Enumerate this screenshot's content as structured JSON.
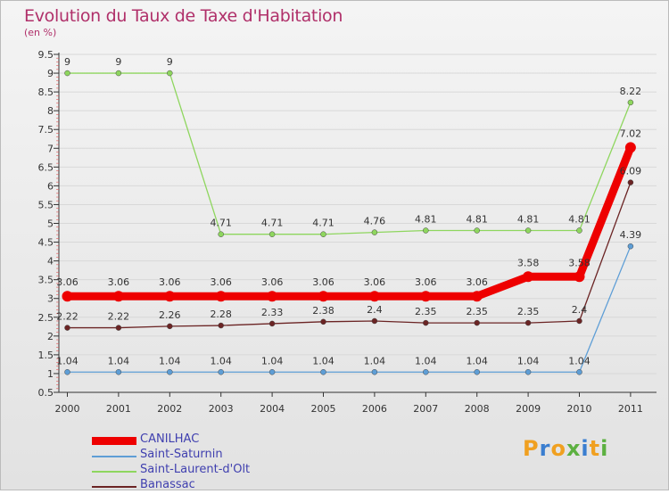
{
  "chart_data": {
    "type": "line",
    "title": "Evolution du Taux de Taxe d'Habitation",
    "ylabel": "(en %)",
    "xlabel": "",
    "ylim": [
      0.5,
      9.5
    ],
    "yticks": [
      "0.5",
      "1",
      "1.5",
      "2",
      "2.5",
      "3",
      "3.5",
      "4",
      "4.5",
      "5",
      "5.5",
      "6",
      "6.5",
      "7",
      "7.5",
      "8",
      "8.5",
      "9",
      "9.5"
    ],
    "categories": [
      "2000",
      "2001",
      "2002",
      "2003",
      "2004",
      "2005",
      "2006",
      "2007",
      "2008",
      "2009",
      "2010",
      "2011"
    ],
    "series": [
      {
        "name": "CANILHAC",
        "color": "#ee0000",
        "values": [
          3.06,
          3.06,
          3.06,
          3.06,
          3.06,
          3.06,
          3.06,
          3.06,
          3.06,
          3.58,
          3.58,
          7.02
        ],
        "labels": [
          "3.06",
          "3.06",
          "3.06",
          "3.06",
          "3.06",
          "3.06",
          "3.06",
          "3.06",
          "3.06",
          "3.58",
          "3.58",
          "7.02"
        ]
      },
      {
        "name": "Saint-Saturnin",
        "color": "#5e9ed6",
        "values": [
          1.04,
          1.04,
          1.04,
          1.04,
          1.04,
          1.04,
          1.04,
          1.04,
          1.04,
          1.04,
          1.04,
          4.39
        ],
        "labels": [
          "1.04",
          "1.04",
          "1.04",
          "1.04",
          "1.04",
          "1.04",
          "1.04",
          "1.04",
          "1.04",
          "1.04",
          "1.04",
          "4.39"
        ]
      },
      {
        "name": "Saint-Laurent-d'Olt",
        "color": "#8ed65e",
        "values": [
          9,
          9,
          9,
          4.71,
          4.71,
          4.71,
          4.76,
          4.81,
          4.81,
          4.81,
          4.81,
          8.22
        ],
        "labels": [
          "9",
          "9",
          "9",
          "4.71",
          "4.71",
          "4.71",
          "4.76",
          "4.81",
          "4.81",
          "4.81",
          "4.81",
          "8.22"
        ]
      },
      {
        "name": "Banassac",
        "color": "#6b2424",
        "values": [
          2.22,
          2.22,
          2.26,
          2.28,
          2.33,
          2.38,
          2.4,
          2.35,
          2.35,
          2.35,
          2.4,
          6.09
        ],
        "labels": [
          "2.22",
          "2.22",
          "2.26",
          "2.28",
          "2.33",
          "2.38",
          "2.4",
          "2.35",
          "2.35",
          "2.35",
          "2.4",
          "6.09"
        ]
      }
    ],
    "legend_position": "bottom-left"
  },
  "logo": {
    "letters": [
      "P",
      "r",
      "o",
      "x",
      "i",
      "t",
      "i"
    ],
    "colors": [
      "#f0a020",
      "#3a7ed0",
      "#f0a020",
      "#5cb040",
      "#3a7ed0",
      "#f0a020",
      "#5cb040"
    ]
  }
}
